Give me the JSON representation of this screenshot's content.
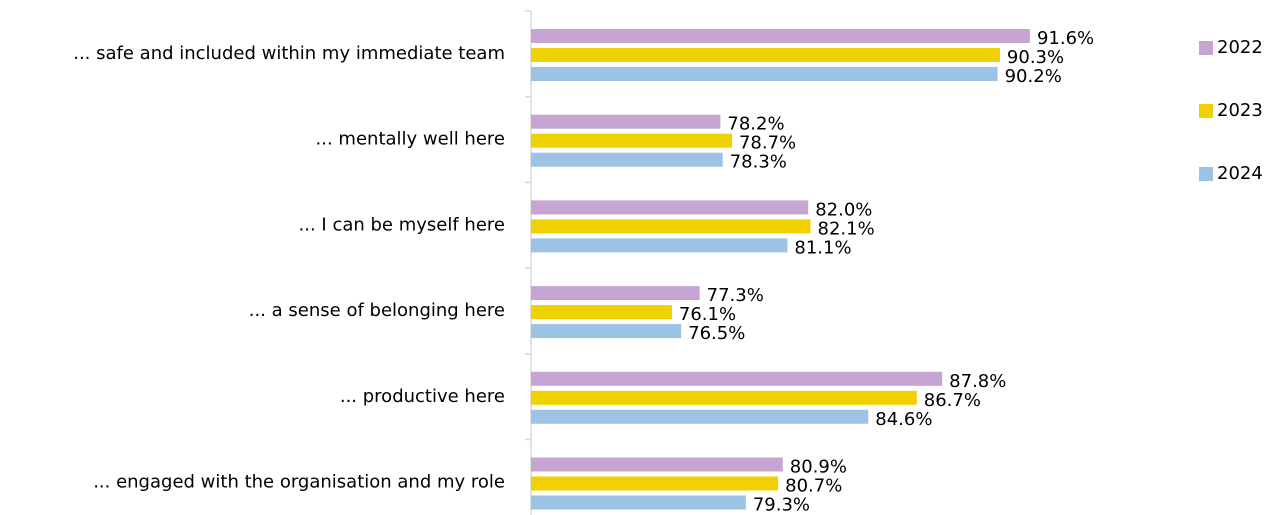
{
  "chart_data": {
    "type": "bar",
    "orientation": "horizontal",
    "categories": [
      "... safe and included within my immediate team",
      "... mentally well here",
      "... I can be myself here",
      "... a sense of belonging here",
      "... productive here",
      "... engaged with the organisation and my role"
    ],
    "series": [
      {
        "name": "2022",
        "color": "#c6a5d2",
        "values": [
          91.6,
          78.2,
          82.0,
          77.3,
          87.8,
          80.9
        ],
        "value_labels": [
          "91.6%",
          "78.2%",
          "82.0%",
          "77.3%",
          "87.8%",
          "80.9%"
        ]
      },
      {
        "name": "2023",
        "color": "#efd000",
        "values": [
          90.3,
          78.7,
          82.1,
          76.1,
          86.7,
          80.7
        ],
        "value_labels": [
          "90.3%",
          "78.7%",
          "82.1%",
          "76.1%",
          "86.7%",
          "80.7%"
        ]
      },
      {
        "name": "2024",
        "color": "#9cc2e5",
        "values": [
          90.2,
          78.3,
          81.1,
          76.5,
          84.6,
          79.3
        ],
        "value_labels": [
          "90.2%",
          "78.3%",
          "81.1%",
          "76.5%",
          "84.6%",
          "79.3%"
        ]
      }
    ],
    "xlim": [
      70,
      100
    ],
    "legend": "right"
  }
}
